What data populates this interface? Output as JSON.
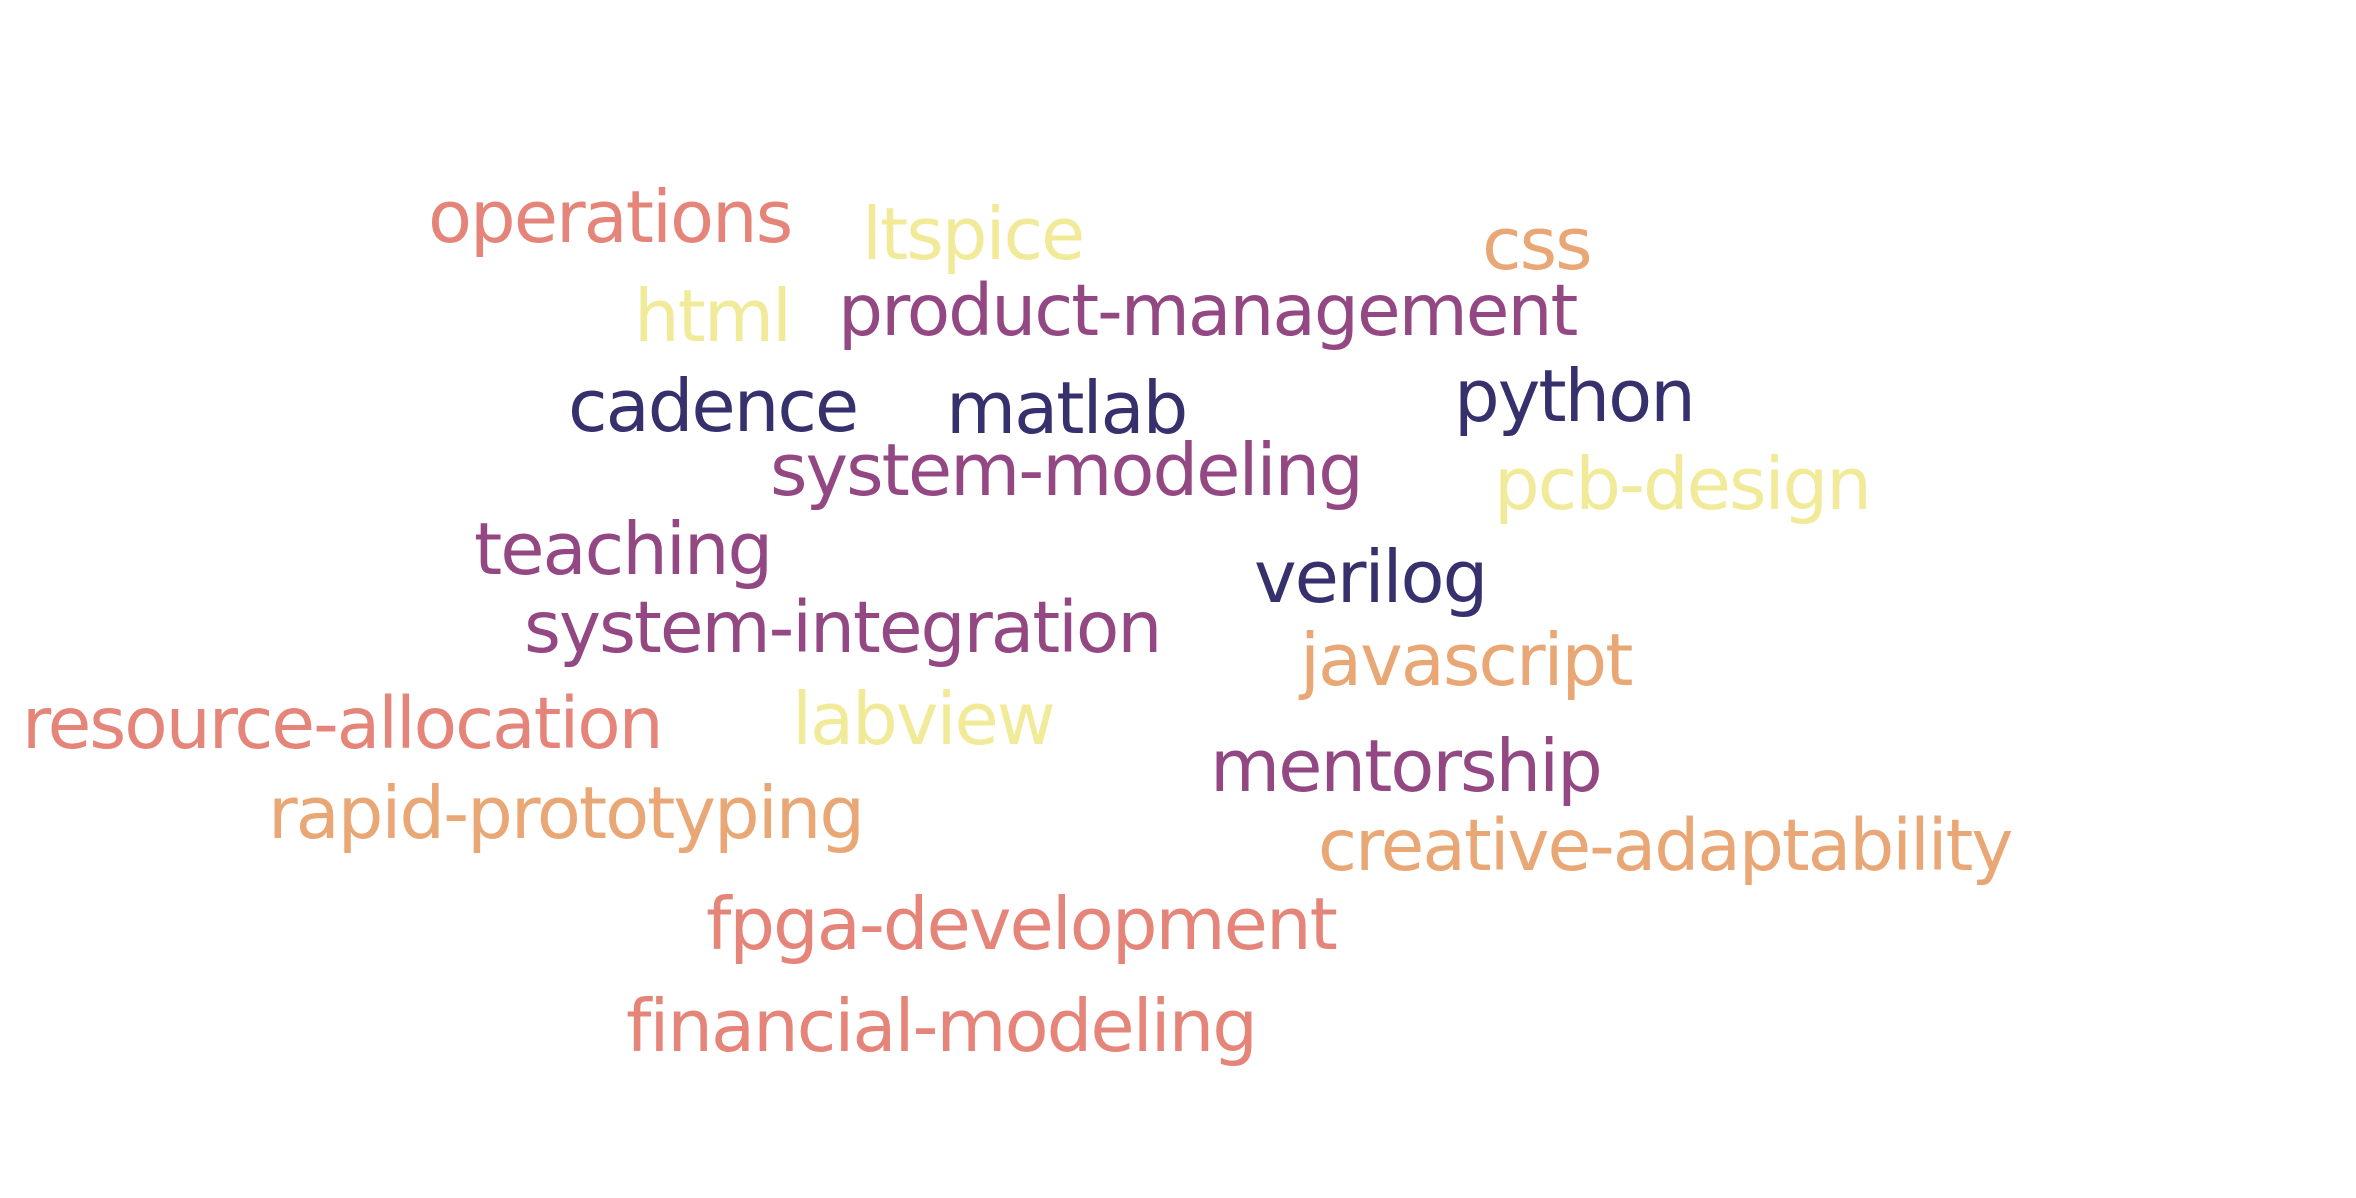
{
  "words": [
    {
      "text": "operations",
      "color": "#e5857a"
    },
    {
      "text": "ltspice",
      "color": "#f1ea98"
    },
    {
      "text": "css",
      "color": "#e9a775"
    },
    {
      "text": "html",
      "color": "#f1ea98"
    },
    {
      "text": "product-management",
      "color": "#944883"
    },
    {
      "text": "cadence",
      "color": "#36306c"
    },
    {
      "text": "matlab",
      "color": "#36306c"
    },
    {
      "text": "python",
      "color": "#36306c"
    },
    {
      "text": "system-modeling",
      "color": "#944883"
    },
    {
      "text": "pcb-design",
      "color": "#f1ea98"
    },
    {
      "text": "teaching",
      "color": "#944883"
    },
    {
      "text": "verilog",
      "color": "#36306c"
    },
    {
      "text": "system-integration",
      "color": "#944883"
    },
    {
      "text": "javascript",
      "color": "#e9a775"
    },
    {
      "text": "resource-allocation",
      "color": "#e5857a"
    },
    {
      "text": "labview",
      "color": "#f1ea98"
    },
    {
      "text": "mentorship",
      "color": "#944883"
    },
    {
      "text": "rapid-prototyping",
      "color": "#e9a775"
    },
    {
      "text": "creative-adaptability",
      "color": "#e9a775"
    },
    {
      "text": "fpga-development",
      "color": "#e5857a"
    },
    {
      "text": "financial-modeling",
      "color": "#e5857a"
    }
  ]
}
